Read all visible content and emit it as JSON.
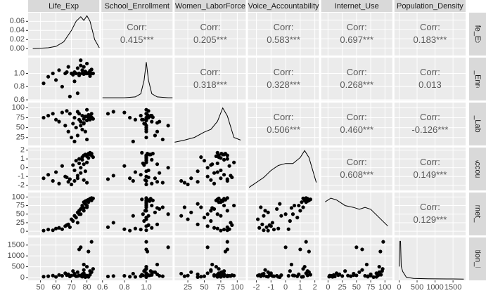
{
  "chart_data": {
    "type": "pairs",
    "corr_title": "Corr:",
    "variables": [
      {
        "name": "Life_Exp",
        "lim": [
          42,
          88
        ],
        "ticks": [
          50,
          60,
          70,
          80
        ],
        "density": {
          "x": [
            45,
            55,
            60,
            65,
            70,
            73,
            76,
            78,
            80,
            82,
            85,
            88
          ],
          "y": [
            0,
            0.002,
            0.005,
            0.015,
            0.04,
            0.06,
            0.07,
            0.062,
            0.072,
            0.06,
            0.02,
            0.002
          ],
          "ylim": [
            -0.015,
            0.079
          ],
          "yticks": [
            {
              "value": 0,
              "label": "0.00"
            },
            {
              "value": 0.02,
              "label": "0.02"
            },
            {
              "value": 0.04,
              "label": "0.04"
            },
            {
              "value": 0.06,
              "label": "0.06"
            }
          ]
        }
      },
      {
        "name": "School_Enrollment",
        "lim": [
          0.59,
          1.24
        ],
        "ticks": [
          0.6,
          0.8,
          {
            "value": 1,
            "label": "1.0"
          }
        ],
        "density": {
          "x": [
            0.6,
            0.8,
            0.9,
            0.95,
            0.98,
            1,
            1.02,
            1.05,
            1.1,
            1.2,
            1.24
          ],
          "y": [
            0.1,
            0.1,
            0.3,
            1,
            4,
            8,
            4,
            1,
            0.3,
            0.1,
            0.1
          ],
          "ylim": [
            -0.5,
            9
          ]
        }
      },
      {
        "name": "Women_LaborForce",
        "lim": [
          5,
          113
        ],
        "ticks": [
          25,
          50,
          75,
          100
        ],
        "density": {
          "x": [
            5,
            20,
            35,
            50,
            60,
            70,
            78,
            85,
            95,
            105
          ],
          "y": [
            0.1,
            0.5,
            1,
            2,
            2.5,
            4,
            6.5,
            5,
            1,
            0.5
          ],
          "ylim": [
            -0.5,
            7.5
          ]
        }
      },
      {
        "name": "Voice_Accountability",
        "lim": [
          -2.58,
          2.29
        ],
        "ticks": [
          -2,
          -1,
          0,
          1,
          2
        ],
        "density": {
          "x": [
            -2.5,
            -2,
            -1.5,
            -1,
            -0.5,
            0,
            0.5,
            1,
            1.3,
            1.6,
            2.1
          ],
          "y": [
            0,
            0.05,
            0.1,
            0.17,
            0.22,
            0.24,
            0.24,
            0.3,
            0.37,
            0.3,
            0.05
          ],
          "ylim": [
            -0.03,
            0.4
          ]
        }
      },
      {
        "name": "Internet_Use",
        "lim": [
          -12,
          113
        ],
        "ticks": [
          0,
          25,
          50,
          75,
          100
        ],
        "density": {
          "x": [
            -5,
            5,
            15,
            30,
            45,
            55,
            65,
            75,
            85,
            95,
            105
          ],
          "y": [
            0.9,
            1,
            0.95,
            0.8,
            0.75,
            0.7,
            0.75,
            0.7,
            0.55,
            0.4,
            0.25
          ],
          "ylim": [
            0,
            1.15
          ]
        }
      },
      {
        "name": "Population_Density",
        "lim": [
          -130,
          1850
        ],
        "ticks": [
          0,
          500,
          1000,
          1500
        ],
        "density": {
          "x": [
            0,
            20,
            40,
            60,
            100,
            200,
            400,
            800,
            1500,
            1800
          ],
          "y": [
            1,
            3,
            3,
            1,
            0.6,
            0.15,
            0.05,
            0.02,
            0.01,
            0
          ],
          "ylim": [
            -0.1,
            3.3
          ]
        }
      }
    ],
    "corr_values": [
      [
        0.415,
        0.205,
        0.583,
        0.697,
        0.183
      ],
      [
        0.318,
        0.328,
        0.268,
        0.013
      ],
      [
        0.506,
        0.46,
        -0.126
      ],
      [
        0.608,
        0.149
      ],
      [
        0.129
      ]
    ],
    "corr_labels": [
      [
        "0.415***",
        "0.205***",
        "0.583***",
        "0.697***",
        "0.183***"
      ],
      [
        "0.318***",
        "0.328***",
        "0.268***",
        "0.013"
      ],
      [
        "0.506***",
        "0.460***",
        "-0.126***"
      ],
      [
        "0.608***",
        "0.149***"
      ],
      [
        "0.129***"
      ]
    ],
    "observations": [
      [
        52,
        0.85,
        75,
        -1.2,
        2,
        40
      ],
      [
        55,
        0.95,
        80,
        -0.8,
        5,
        60
      ],
      [
        58,
        1.0,
        85,
        -1.5,
        3,
        90
      ],
      [
        60,
        0.9,
        70,
        -0.5,
        8,
        30
      ],
      [
        62,
        1.05,
        65,
        -1.8,
        10,
        120
      ],
      [
        64,
        0.8,
        88,
        0.2,
        6,
        80
      ],
      [
        66,
        1.0,
        55,
        -1.0,
        15,
        200
      ],
      [
        68,
        1.1,
        40,
        -1.6,
        20,
        150
      ],
      [
        70,
        1.0,
        25,
        -1.9,
        35,
        90
      ],
      [
        71,
        0.98,
        60,
        0.3,
        30,
        300
      ],
      [
        72,
        1.02,
        75,
        -0.3,
        45,
        110
      ],
      [
        73,
        1.0,
        50,
        0.8,
        40,
        60
      ],
      [
        74,
        1.08,
        30,
        -1.2,
        55,
        250
      ],
      [
        75,
        0.97,
        70,
        0.5,
        50,
        100
      ],
      [
        75,
        1.0,
        85,
        1.0,
        60,
        1300
      ],
      [
        76,
        1.12,
        65,
        -0.6,
        65,
        80
      ],
      [
        77,
        1.0,
        45,
        1.2,
        70,
        40
      ],
      [
        77,
        1.05,
        80,
        0.9,
        75,
        150
      ],
      [
        78,
        0.99,
        60,
        -1.4,
        60,
        350
      ],
      [
        78,
        1.0,
        72,
        1.4,
        85,
        200
      ],
      [
        79,
        1.03,
        78,
        1.5,
        88,
        100
      ],
      [
        80,
        1.0,
        68,
        1.3,
        90,
        500
      ],
      [
        80,
        1.15,
        20,
        -1.7,
        70,
        60
      ],
      [
        81,
        1.01,
        82,
        1.6,
        92,
        1200
      ],
      [
        81,
        1.0,
        75,
        1.1,
        85,
        30
      ],
      [
        82,
        1.04,
        80,
        1.5,
        95,
        300
      ],
      [
        82,
        0.96,
        70,
        1.7,
        93,
        130
      ],
      [
        83,
        1.0,
        85,
        1.4,
        97,
        1650
      ],
      [
        83,
        1.06,
        76,
        1.6,
        90,
        250
      ],
      [
        84,
        1.0,
        72,
        1.2,
        96,
        400
      ],
      [
        74,
        0.7,
        90,
        -0.9,
        25,
        70
      ],
      [
        69,
        0.65,
        85,
        -1.3,
        12,
        50
      ],
      [
        76,
        1.2,
        55,
        0.0,
        50,
        1400
      ],
      [
        79,
        1.0,
        40,
        -0.4,
        80,
        20
      ],
      [
        72,
        0.88,
        15,
        -1.5,
        45,
        180
      ],
      [
        80,
        1.0,
        95,
        0.6,
        75,
        90
      ],
      [
        67,
        1.02,
        92,
        -1.1,
        18,
        110
      ],
      [
        78,
        1.1,
        62,
        0.4,
        68,
        600
      ]
    ]
  }
}
